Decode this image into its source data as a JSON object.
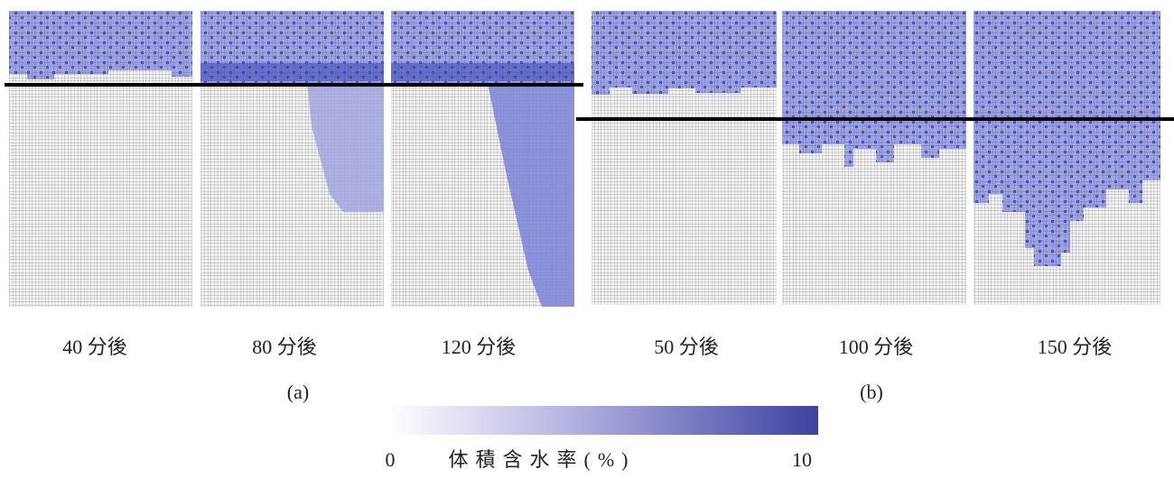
{
  "panels": [
    {
      "label": "40 分後"
    },
    {
      "label": "80 分後"
    },
    {
      "label": "120 分後"
    },
    {
      "label": "50 分後"
    },
    {
      "label": "100 分後"
    },
    {
      "label": "150 分後"
    }
  ],
  "groups": [
    {
      "label": "(a)"
    },
    {
      "label": "(b)"
    }
  ],
  "colorbar": {
    "title": "体積含水率(%)",
    "ticks": [
      0,
      10
    ]
  }
}
